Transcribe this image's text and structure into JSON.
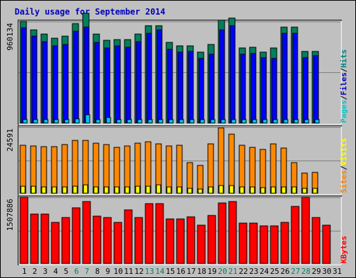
{
  "chart_data": {
    "type": "bar",
    "title": "Daily usage for September 2014",
    "x_labels": [
      "1",
      "2",
      "3",
      "4",
      "5",
      "6",
      "7",
      "8",
      "9",
      "10",
      "11",
      "12",
      "13",
      "14",
      "15",
      "16",
      "17",
      "18",
      "19",
      "20",
      "21",
      "22",
      "23",
      "24",
      "25",
      "26",
      "27",
      "28",
      "29",
      "30",
      "31"
    ],
    "weekend_days": [
      6,
      7,
      13,
      14,
      20,
      21,
      27,
      28
    ],
    "panels": [
      {
        "id": "hits",
        "max_label": "960134",
        "ymax": 960134,
        "side_labels": [
          {
            "text": "Pages",
            "color": "#00c8d0"
          },
          {
            "text": "Files",
            "color": "#0000c0"
          },
          {
            "text": "Hits",
            "color": "#008080"
          }
        ],
        "series": [
          {
            "name": "Hits",
            "color": "#00805c",
            "values": [
              960000,
              880000,
              840000,
              800000,
              820000,
              940000,
              1040000,
              840000,
              780000,
              790000,
              790000,
              840000,
              920000,
              920000,
              760000,
              730000,
              730000,
              670000,
              740000,
              970000,
              990000,
              710000,
              720000,
              670000,
              710000,
              910000,
              910000,
              680000,
              680000,
              null,
              null
            ]
          },
          {
            "name": "Files",
            "color": "#0000ff",
            "values": [
              900000,
              820000,
              770000,
              730000,
              740000,
              870000,
              910000,
              760000,
              710000,
              730000,
              720000,
              770000,
              850000,
              880000,
              700000,
              670000,
              680000,
              610000,
              650000,
              880000,
              920000,
              650000,
              660000,
              620000,
              610000,
              850000,
              850000,
              620000,
              640000,
              null,
              null
            ]
          },
          {
            "name": "Pages",
            "color": "#00c8f0",
            "values": [
              30000,
              30000,
              30000,
              30000,
              30000,
              40000,
              80000,
              30000,
              50000,
              30000,
              30000,
              30000,
              30000,
              30000,
              30000,
              30000,
              30000,
              30000,
              30000,
              30000,
              30000,
              30000,
              30000,
              30000,
              30000,
              30000,
              30000,
              30000,
              30000,
              null,
              null
            ]
          }
        ]
      },
      {
        "id": "visits",
        "max_label": "24591",
        "ymax": 24591,
        "side_labels": [
          {
            "text": "Sites",
            "color": "#ff8000"
          },
          {
            "text": "Visits",
            "color": "#ffff00"
          }
        ],
        "series": [
          {
            "name": "Sites",
            "color": "#ff8800",
            "values": [
              17900,
              17500,
              17300,
              17300,
              18100,
              19700,
              19800,
              18600,
              18000,
              17200,
              17500,
              18700,
              19200,
              18300,
              17700,
              17800,
              11300,
              10300,
              18400,
              24300,
              22000,
              17800,
              17100,
              16200,
              18500,
              16700,
              11500,
              7500,
              7800,
              null,
              null
            ]
          },
          {
            "name": "Visits",
            "color": "#ffff00",
            "values": [
              2500,
              2500,
              2400,
              2300,
              2400,
              2600,
              3100,
              2400,
              2300,
              2300,
              2300,
              2500,
              2500,
              3100,
              2300,
              2300,
              1800,
              1600,
              2400,
              2800,
              2800,
              2300,
              2300,
              2200,
              2300,
              2300,
              2300,
              1800,
              1800,
              null,
              null
            ]
          }
        ]
      },
      {
        "id": "kbytes",
        "max_label": "1507886",
        "ymax": 1507886,
        "side_labels": [
          {
            "text": "KBytes",
            "color": "#ff0000"
          }
        ],
        "series": [
          {
            "name": "KBytes",
            "color": "#ff0000",
            "values": [
              1500000,
              1130000,
              1120000,
              940000,
              1040000,
              1270000,
              1420000,
              1080000,
              1040000,
              930000,
              1230000,
              1040000,
              1360000,
              1370000,
              1010000,
              1020000,
              1060000,
              880000,
              1090000,
              1380000,
              1410000,
              920000,
              920000,
              860000,
              850000,
              930000,
              1300000,
              1500000,
              1040000,
              870000,
              null
            ]
          }
        ]
      }
    ]
  }
}
